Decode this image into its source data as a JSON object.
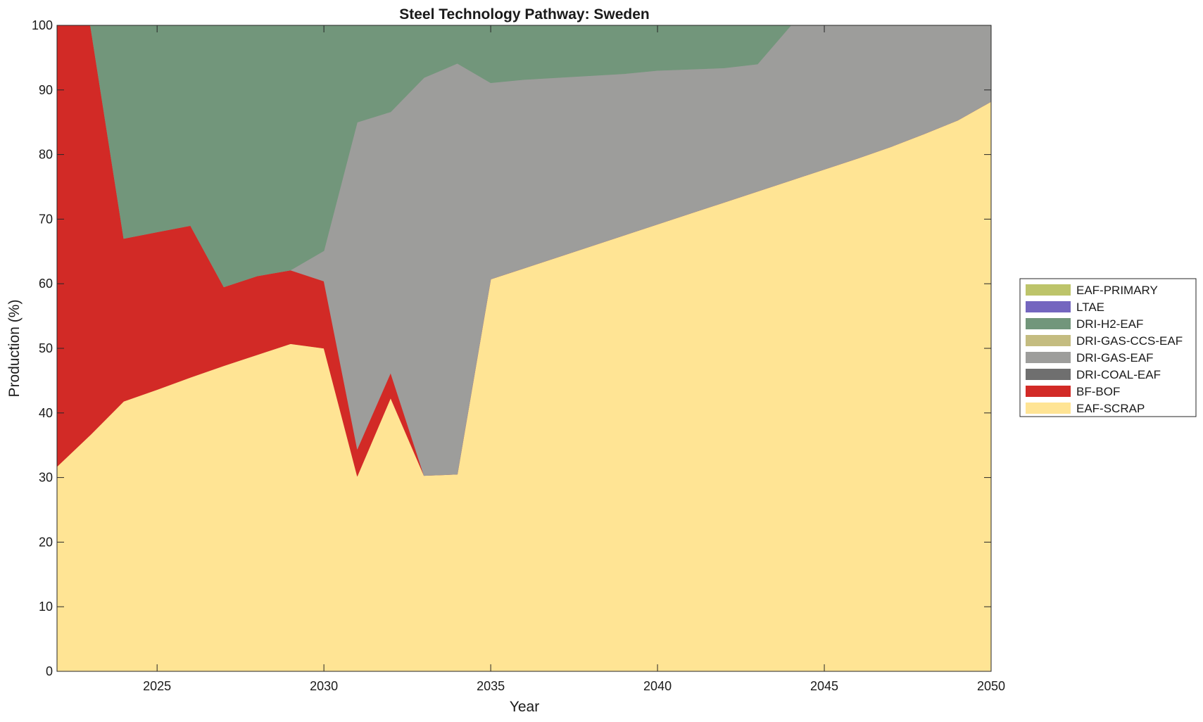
{
  "chart_data": {
    "type": "area",
    "stacked": true,
    "title": "Steel Technology Pathway: Sweden",
    "xlabel": "Year",
    "ylabel": "Production (%)",
    "xlim": [
      2022,
      2050
    ],
    "ylim": [
      0,
      100
    ],
    "xticks": [
      2025,
      2030,
      2035,
      2040,
      2045,
      2050
    ],
    "yticks": [
      0,
      10,
      20,
      30,
      40,
      50,
      60,
      70,
      80,
      90,
      100
    ],
    "grid": false,
    "legend_position": "right",
    "x": [
      2022,
      2023,
      2024,
      2025,
      2026,
      2027,
      2028,
      2029,
      2030,
      2031,
      2032,
      2033,
      2034,
      2035,
      2036,
      2037,
      2038,
      2039,
      2040,
      2041,
      2042,
      2043,
      2044,
      2045,
      2046,
      2047,
      2048,
      2049,
      2050
    ],
    "series": [
      {
        "name": "EAF-SCRAP",
        "color": "#FFE494",
        "values": [
          31.7,
          36.6,
          41.8,
          43.6,
          45.5,
          47.3,
          49.0,
          50.7,
          50.0,
          30.2,
          42.3,
          30.3,
          30.5,
          60.7,
          62.4,
          64.1,
          65.8,
          67.5,
          69.2,
          70.9,
          72.6,
          74.3,
          76.0,
          77.7,
          79.4,
          81.2,
          83.2,
          85.3,
          88.2
        ]
      },
      {
        "name": "BF-BOF",
        "color": "#D22A26",
        "values": [
          68.3,
          63.4,
          25.2,
          24.4,
          23.5,
          12.2,
          12.2,
          11.4,
          10.4,
          4.2,
          3.9,
          0,
          0,
          0,
          0,
          0,
          0,
          0,
          0,
          0,
          0,
          0,
          0,
          0,
          0,
          0,
          0,
          0,
          0
        ]
      },
      {
        "name": "DRI-COAL-EAF",
        "color": "#6F6F6F",
        "values": [
          0,
          0,
          0,
          0,
          0,
          0,
          0,
          0,
          0,
          0,
          0,
          0,
          0,
          0,
          0,
          0,
          0,
          0,
          0,
          0,
          0,
          0,
          0,
          0,
          0,
          0,
          0,
          0,
          0
        ]
      },
      {
        "name": "DRI-GAS-EAF",
        "color": "#9D9D9B",
        "values": [
          0,
          0,
          0,
          0,
          0,
          0,
          0,
          0,
          4.7,
          50.6,
          40.4,
          61.6,
          63.6,
          30.4,
          29.2,
          27.8,
          26.4,
          25.0,
          23.8,
          22.3,
          20.8,
          19.7,
          24.0,
          22.3,
          20.6,
          18.8,
          16.8,
          14.7,
          11.8
        ]
      },
      {
        "name": "DRI-GAS-CCS-EAF",
        "color": "#C4BC80",
        "values": [
          0,
          0,
          0,
          0,
          0,
          0,
          0,
          0,
          0,
          0,
          0,
          0,
          0,
          0,
          0,
          0,
          0,
          0,
          0,
          0,
          0,
          0,
          0,
          0,
          0,
          0,
          0,
          0,
          0
        ]
      },
      {
        "name": "DRI-H2-EAF",
        "color": "#72967B",
        "values": [
          0,
          0,
          33.0,
          32.0,
          31.0,
          40.5,
          38.8,
          37.9,
          34.9,
          15.0,
          13.4,
          8.1,
          5.9,
          8.9,
          8.4,
          8.1,
          7.8,
          7.5,
          7.0,
          6.8,
          6.6,
          6.0,
          0,
          0,
          0,
          0,
          0,
          0,
          0
        ]
      },
      {
        "name": "LTAE",
        "color": "#7466BF",
        "values": [
          0,
          0,
          0,
          0,
          0,
          0,
          0,
          0,
          0,
          0,
          0,
          0,
          0,
          0,
          0,
          0,
          0,
          0,
          0,
          0,
          0,
          0,
          0,
          0,
          0,
          0,
          0,
          0,
          0
        ]
      },
      {
        "name": "EAF-PRIMARY",
        "color": "#BDC46A",
        "values": [
          0,
          0,
          0,
          0,
          0,
          0,
          0,
          0,
          0,
          0,
          0,
          0,
          0,
          0,
          0,
          0,
          0,
          0,
          0,
          0,
          0,
          0,
          0,
          0,
          0,
          0,
          0,
          0,
          0
        ]
      }
    ]
  }
}
